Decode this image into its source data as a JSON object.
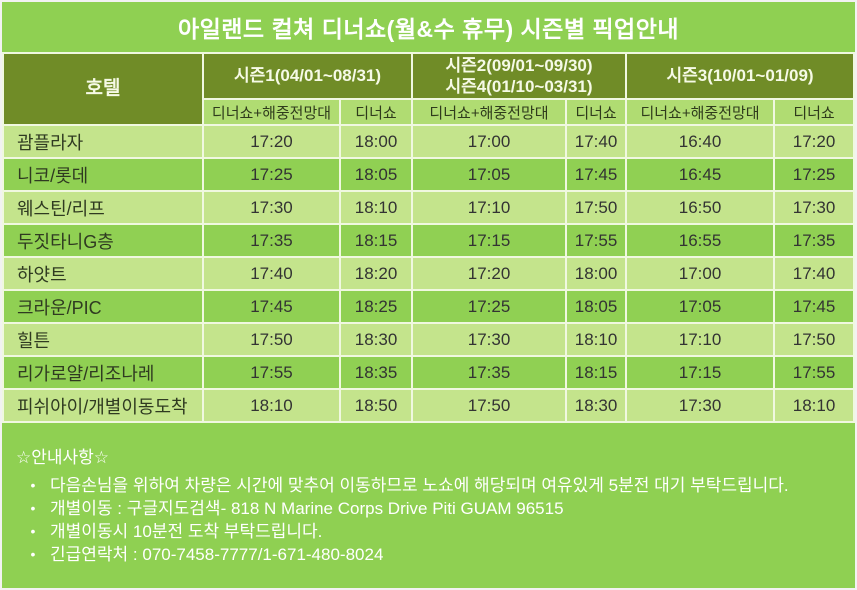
{
  "title": "아일랜드 컬쳐 디너쇼(월&수 휴무) 시즌별 픽업안내",
  "table": {
    "hotel_header": "호텔",
    "season_groups": [
      {
        "lines": [
          "시즌1(04/01~08/31)"
        ]
      },
      {
        "lines": [
          "시즌2(09/01~09/30)",
          "시즌4(01/10~03/31)"
        ]
      },
      {
        "lines": [
          "시즌3(10/01~01/09)"
        ]
      }
    ],
    "sub_headers": [
      "디너쇼+해중전망대",
      "디너쇼"
    ],
    "rows": [
      {
        "hotel": "괌플라자",
        "times": [
          "17:20",
          "18:00",
          "17:00",
          "17:40",
          "16:40",
          "17:20"
        ]
      },
      {
        "hotel": "니코/롯데",
        "times": [
          "17:25",
          "18:05",
          "17:05",
          "17:45",
          "16:45",
          "17:25"
        ]
      },
      {
        "hotel": "웨스틴/리프",
        "times": [
          "17:30",
          "18:10",
          "17:10",
          "17:50",
          "16:50",
          "17:30"
        ]
      },
      {
        "hotel": "두짓타니G층",
        "times": [
          "17:35",
          "18:15",
          "17:15",
          "17:55",
          "16:55",
          "17:35"
        ]
      },
      {
        "hotel": "하얏트",
        "times": [
          "17:40",
          "18:20",
          "17:20",
          "18:00",
          "17:00",
          "17:40"
        ]
      },
      {
        "hotel": "크라운/PIC",
        "times": [
          "17:45",
          "18:25",
          "17:25",
          "18:05",
          "17:05",
          "17:45"
        ]
      },
      {
        "hotel": "힐튼",
        "times": [
          "17:50",
          "18:30",
          "17:30",
          "18:10",
          "17:10",
          "17:50"
        ]
      },
      {
        "hotel": "리가로얄/리조나레",
        "times": [
          "17:55",
          "18:35",
          "17:35",
          "18:15",
          "17:15",
          "17:55"
        ]
      },
      {
        "hotel": "피쉬아이/개별이동도착",
        "times": [
          "18:10",
          "18:50",
          "17:50",
          "18:30",
          "17:30",
          "18:10"
        ]
      }
    ]
  },
  "notes": {
    "heading": "☆안내사항☆",
    "bullet": "•",
    "items": [
      "다음손님을 위하여 차량은 시간에 맞추어 이동하므로 노쇼에 해당되며 여유있게 5분전 대기 부탁드립니다.",
      "개별이동 : 구글지도검색- 818 N Marine Corps Drive Piti GUAM 96515",
      "개별이동시 10분전 도착 부탁드립니다.",
      "긴급연락처 : 070-7458-7777/1-671-480-8024"
    ]
  },
  "colors": {
    "page_background": "#8fd052",
    "header_dark_green": "#708c27",
    "subheader_green": "#b0dc72",
    "row_light": "#c4e48c",
    "row_dark": "#90d053",
    "grid_line": "#f0f8e0",
    "title_text": "#ffffff",
    "cell_text": "#333333"
  }
}
